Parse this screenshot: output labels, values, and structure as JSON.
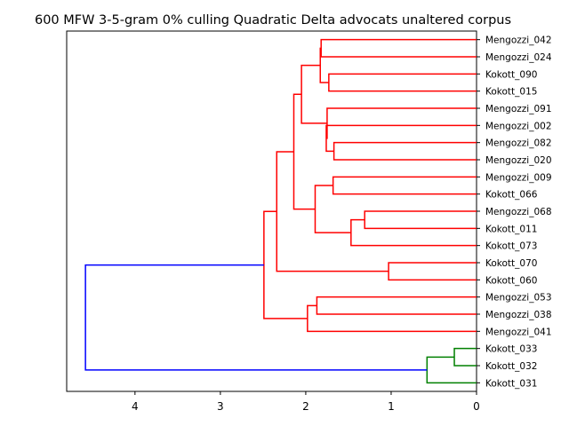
{
  "chart_data": {
    "type": "dendrogram",
    "title": "600 MFW 3-5-gram 0% culling Quadratic Delta advocats unaltered corpus",
    "orientation": "left",
    "xlim": [
      4.8,
      0
    ],
    "x_ticks": [
      4,
      3,
      2,
      1,
      0
    ],
    "leaves": [
      "Kokott_031",
      "Kokott_032",
      "Kokott_033",
      "Mengozzi_041",
      "Mengozzi_038",
      "Mengozzi_053",
      "Kokott_060",
      "Kokott_070",
      "Kokott_073",
      "Kokott_011",
      "Mengozzi_068",
      "Kokott_066",
      "Mengozzi_009",
      "Mengozzi_020",
      "Mengozzi_082",
      "Mengozzi_002",
      "Mengozzi_091",
      "Kokott_015",
      "Kokott_090",
      "Mengozzi_024",
      "Mengozzi_042"
    ],
    "colors": {
      "red_cluster": "#ff0000",
      "green_cluster": "#008000",
      "root": "#0000ff"
    },
    "merges": [
      {
        "id": "n1",
        "children": [
          "Mengozzi_042",
          "Mengozzi_024"
        ],
        "height": 1.82,
        "color": "red"
      },
      {
        "id": "n2",
        "children": [
          "Kokott_090",
          "Kokott_015"
        ],
        "height": 1.73,
        "color": "red"
      },
      {
        "id": "n3",
        "children": [
          "n1",
          "n2"
        ],
        "height": 1.83,
        "color": "red"
      },
      {
        "id": "n4",
        "children": [
          "Mengozzi_082",
          "Mengozzi_020"
        ],
        "height": 1.67,
        "color": "red"
      },
      {
        "id": "n5",
        "children": [
          "Mengozzi_002",
          "n4"
        ],
        "height": 1.76,
        "color": "red"
      },
      {
        "id": "n6",
        "children": [
          "Mengozzi_091",
          "n5"
        ],
        "height": 1.75,
        "color": "red"
      },
      {
        "id": "n7",
        "children": [
          "n3",
          "n6"
        ],
        "height": 2.05,
        "color": "red"
      },
      {
        "id": "n8",
        "children": [
          "Mengozzi_009",
          "Kokott_066"
        ],
        "height": 1.68,
        "color": "red"
      },
      {
        "id": "n9",
        "children": [
          "Mengozzi_068",
          "Kokott_011"
        ],
        "height": 1.31,
        "color": "red"
      },
      {
        "id": "n10",
        "children": [
          "n9",
          "Kokott_073"
        ],
        "height": 1.47,
        "color": "red"
      },
      {
        "id": "n11",
        "children": [
          "n8",
          "n10"
        ],
        "height": 1.89,
        "color": "red"
      },
      {
        "id": "n12",
        "children": [
          "n7",
          "n11"
        ],
        "height": 2.14,
        "color": "red"
      },
      {
        "id": "n13",
        "children": [
          "Kokott_070",
          "Kokott_060"
        ],
        "height": 1.03,
        "color": "red"
      },
      {
        "id": "n14",
        "children": [
          "n12",
          "n13"
        ],
        "height": 2.34,
        "color": "red"
      },
      {
        "id": "n15",
        "children": [
          "Mengozzi_053",
          "Mengozzi_038"
        ],
        "height": 1.87,
        "color": "red"
      },
      {
        "id": "n16",
        "children": [
          "n15",
          "Mengozzi_041"
        ],
        "height": 1.98,
        "color": "red"
      },
      {
        "id": "n17",
        "children": [
          "n14",
          "n16"
        ],
        "height": 2.49,
        "color": "red"
      },
      {
        "id": "n18",
        "children": [
          "Kokott_033",
          "Kokott_032"
        ],
        "height": 0.26,
        "color": "green"
      },
      {
        "id": "n19",
        "children": [
          "n18",
          "Kokott_031"
        ],
        "height": 0.58,
        "color": "green"
      },
      {
        "id": "n20",
        "children": [
          "n17",
          "n19"
        ],
        "height": 4.58,
        "color": "blue"
      }
    ]
  }
}
